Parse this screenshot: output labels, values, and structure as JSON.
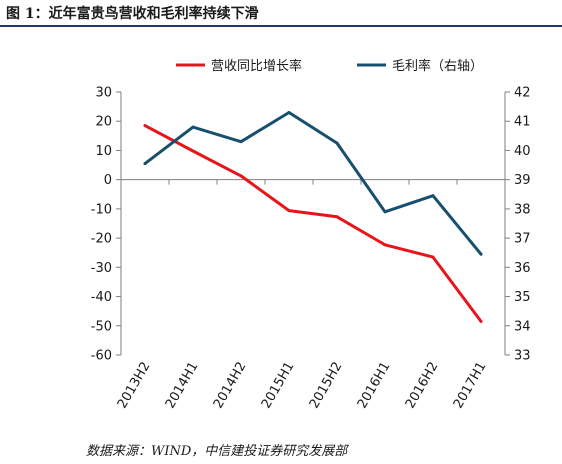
{
  "figure": {
    "title": "图 1：近年富贵鸟营收和毛利率持续下滑",
    "source": "数据来源：WIND，中信建投证券研究发展部"
  },
  "chart_data": {
    "type": "line",
    "title": "",
    "categories": [
      "2013H2",
      "2014H1",
      "2014H2",
      "2015H1",
      "2015H2",
      "2016H1",
      "2016H2",
      "2017H1"
    ],
    "series": [
      {
        "name": "营收同比增长率",
        "axis": "left",
        "color": "#e8141c",
        "values": [
          18.5,
          9.8,
          1.3,
          -10.6,
          -12.7,
          -22.3,
          -26.5,
          -48.5
        ]
      },
      {
        "name": "毛利率（右轴）",
        "axis": "right",
        "color": "#17506e",
        "values": [
          39.55,
          40.8,
          40.3,
          41.3,
          40.25,
          37.9,
          38.45,
          36.45
        ]
      }
    ],
    "y_left": {
      "min": -60,
      "max": 30,
      "step": 10,
      "ticks": [
        "30",
        "20",
        "10",
        "0",
        "-10",
        "-20",
        "-30",
        "-40",
        "-50",
        "-60"
      ]
    },
    "y_right": {
      "min": 33,
      "max": 42,
      "step": 1,
      "ticks": [
        "42",
        "41",
        "40",
        "39",
        "38",
        "37",
        "36",
        "35",
        "34",
        "33"
      ]
    },
    "grid": false,
    "legend_position": "top"
  }
}
